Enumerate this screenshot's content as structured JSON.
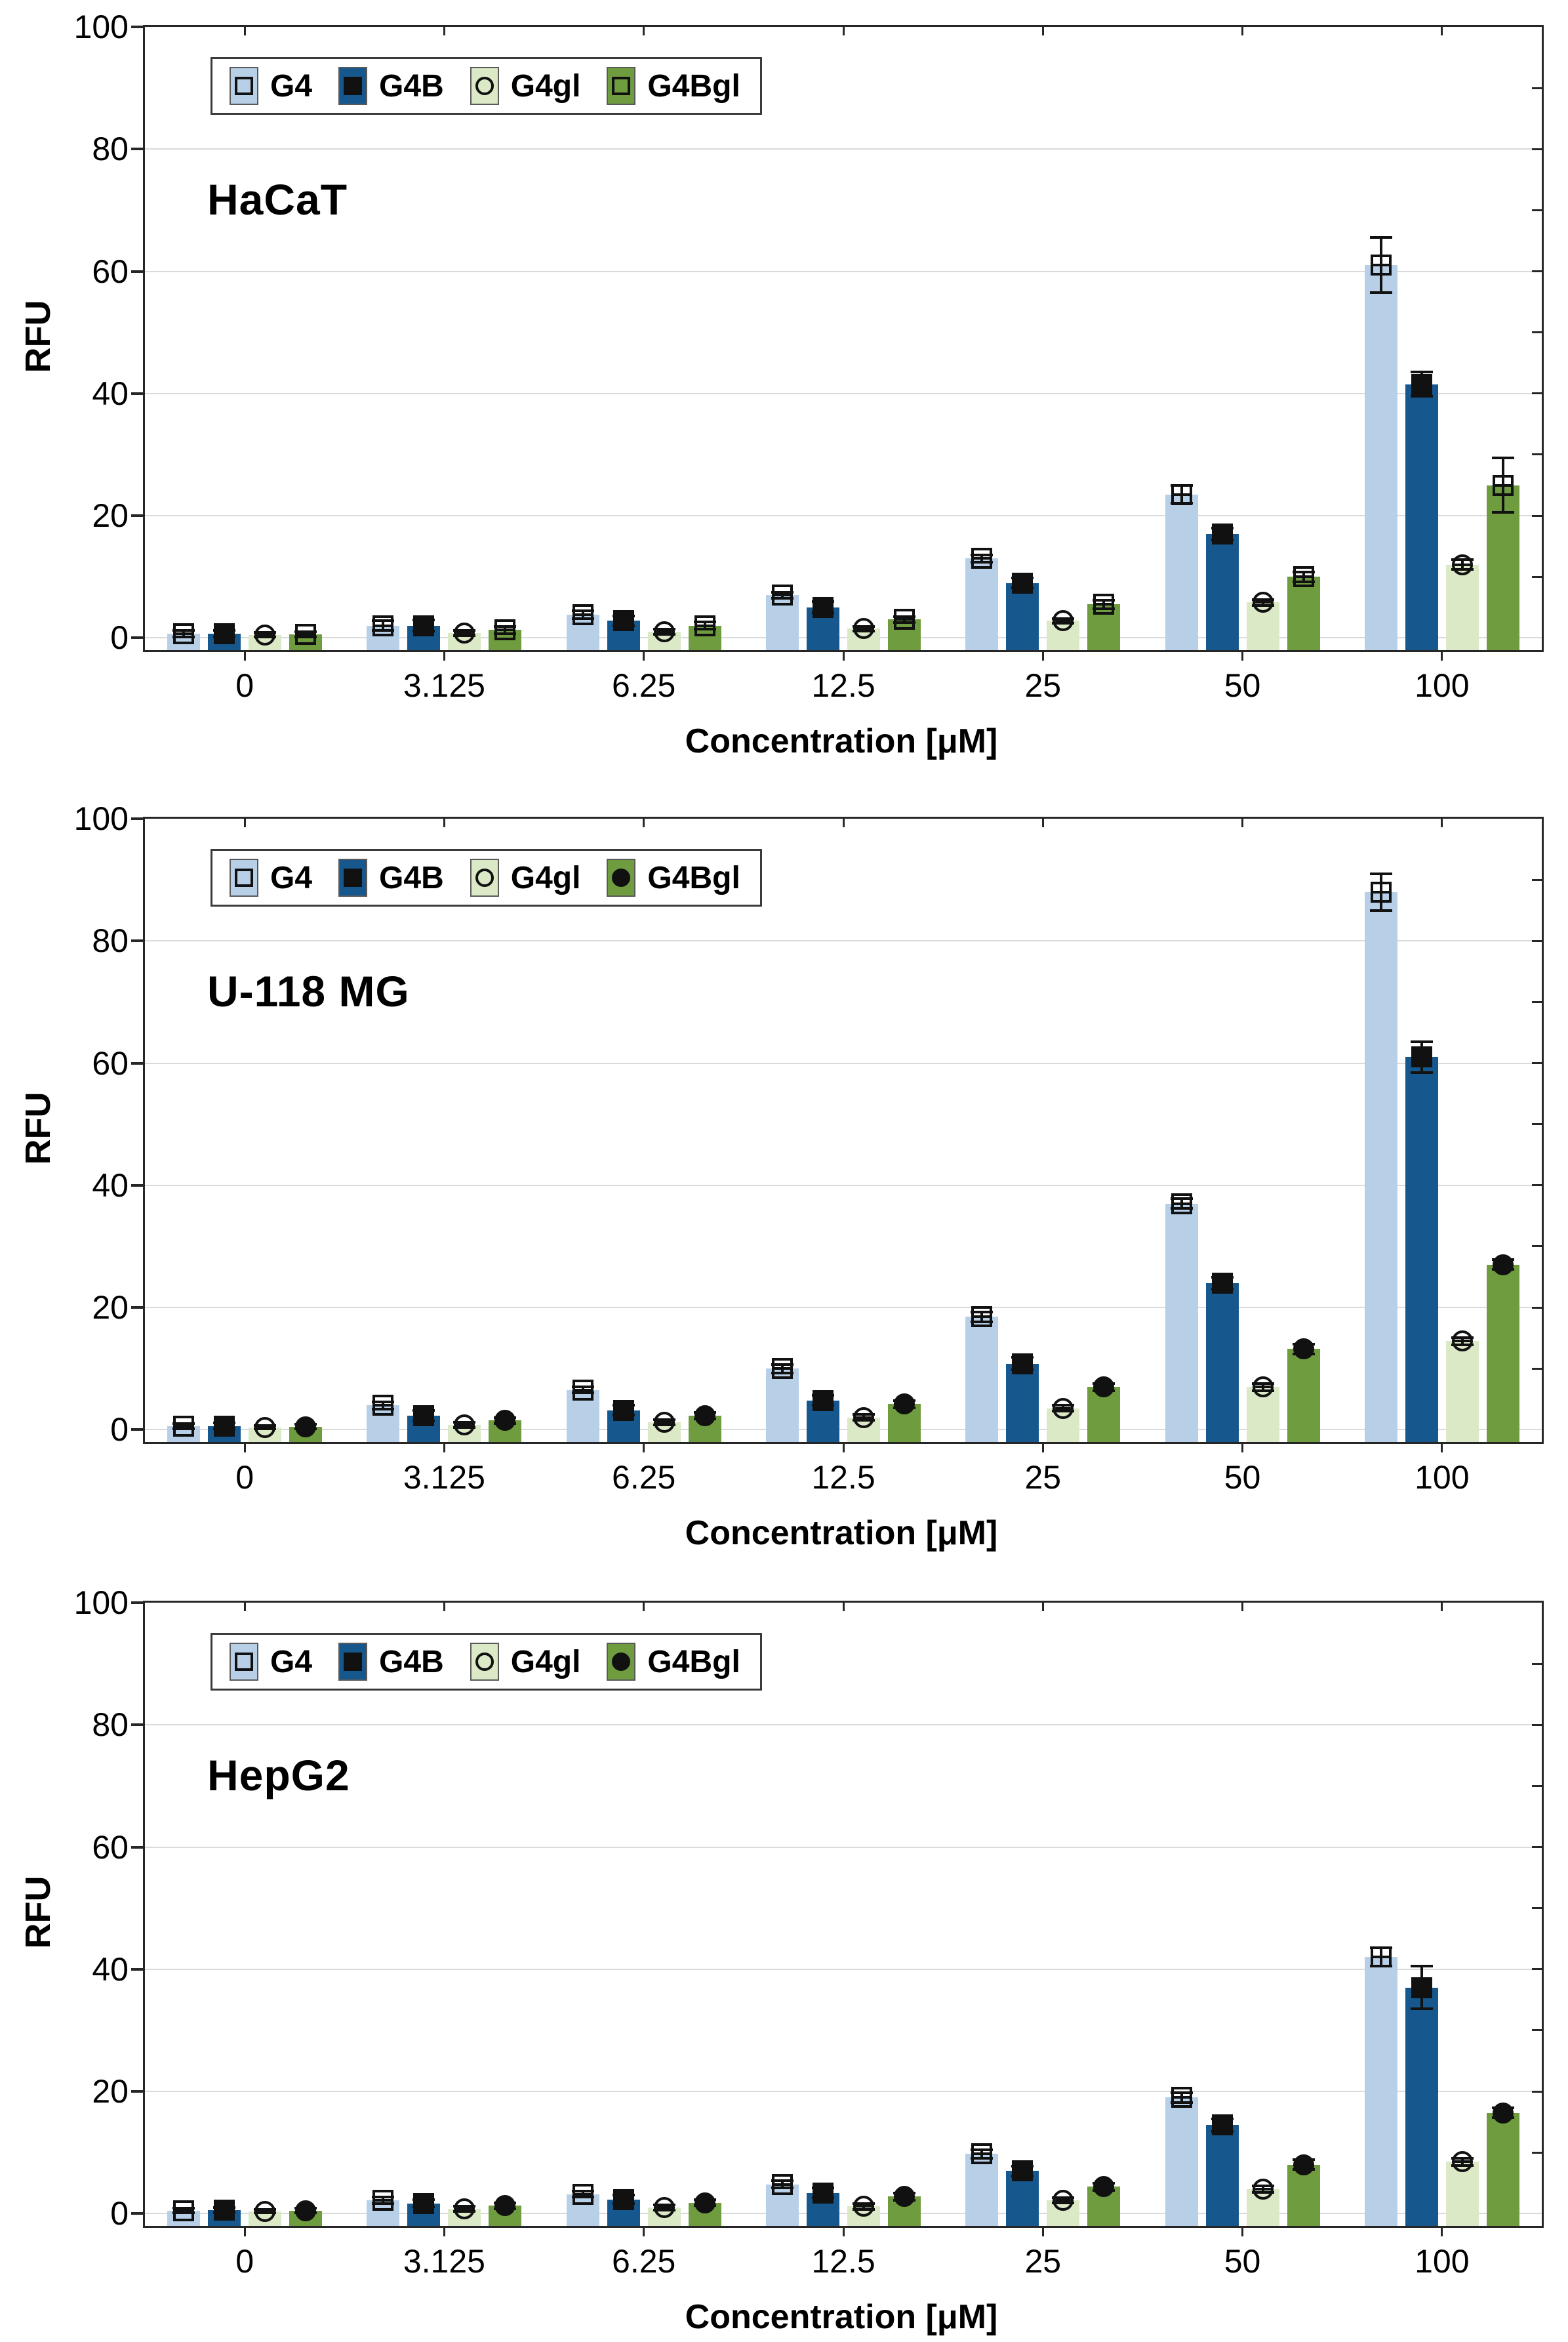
{
  "chart_data": [
    {
      "type": "bar",
      "title": "HaCaT",
      "xlabel": "Concentration [μM]",
      "ylabel": "RFU",
      "ylim": [
        -2,
        100
      ],
      "yticks": [
        0,
        20,
        40,
        60,
        80,
        100
      ],
      "grid": "horizontal",
      "legend_position": "top-left-inside",
      "categories": [
        "0",
        "3.125",
        "6.25",
        "12.5",
        "25",
        "50",
        "100"
      ],
      "series": [
        {
          "name": "G4",
          "color": "#b8cfe8",
          "marker": "open-square",
          "values": [
            0.7,
            2.0,
            3.8,
            7.0,
            13.0,
            23.5,
            61.0
          ],
          "errors": [
            0.5,
            0.8,
            0.6,
            0.5,
            0.6,
            1.5,
            4.5
          ]
        },
        {
          "name": "G4B",
          "color": "#16588e",
          "marker": "filled-square",
          "values": [
            0.7,
            2.0,
            2.8,
            5.0,
            9.0,
            17.0,
            41.5
          ],
          "errors": [
            0.5,
            0.9,
            0.8,
            0.9,
            0.8,
            1.0,
            2.0
          ]
        },
        {
          "name": "G4gl",
          "color": "#dce9c6",
          "marker": "open-circle",
          "values": [
            0.5,
            0.8,
            1.0,
            1.5,
            2.8,
            5.8,
            12.0
          ],
          "errors": [
            0.4,
            0.4,
            0.4,
            0.4,
            0.4,
            0.5,
            0.8
          ]
        },
        {
          "name": "G4Bgl",
          "color": "#6f9c3e",
          "marker": "open-square",
          "values": [
            0.6,
            1.3,
            2.0,
            3.0,
            5.5,
            10.0,
            25.0
          ],
          "errors": [
            0.4,
            0.6,
            0.6,
            0.5,
            0.7,
            0.8,
            4.5
          ]
        }
      ]
    },
    {
      "type": "bar",
      "title": "U-118 MG",
      "xlabel": "Concentration [μM]",
      "ylabel": "RFU",
      "ylim": [
        -2,
        100
      ],
      "yticks": [
        0,
        20,
        40,
        60,
        80,
        100
      ],
      "grid": "horizontal",
      "legend_position": "top-left-inside",
      "categories": [
        "0",
        "3.125",
        "6.25",
        "12.5",
        "25",
        "50",
        "100"
      ],
      "series": [
        {
          "name": "G4",
          "color": "#b8cfe8",
          "marker": "open-square",
          "values": [
            0.6,
            4.0,
            6.5,
            10.0,
            18.5,
            37.0,
            88.0
          ],
          "errors": [
            0.4,
            0.6,
            0.5,
            0.7,
            0.8,
            0.8,
            3.0
          ]
        },
        {
          "name": "G4B",
          "color": "#16588e",
          "marker": "filled-square",
          "values": [
            0.6,
            2.3,
            3.2,
            4.8,
            10.8,
            24.0,
            61.0
          ],
          "errors": [
            0.5,
            0.9,
            0.8,
            0.8,
            1.0,
            1.0,
            2.5
          ]
        },
        {
          "name": "G4gl",
          "color": "#dce9c6",
          "marker": "open-circle",
          "values": [
            0.4,
            0.8,
            1.2,
            2.0,
            3.5,
            7.0,
            14.5
          ],
          "errors": [
            0.3,
            0.4,
            0.4,
            0.5,
            0.5,
            0.6,
            0.6
          ]
        },
        {
          "name": "G4Bgl",
          "color": "#6f9c3e",
          "marker": "filled-circle",
          "values": [
            0.5,
            1.5,
            2.3,
            4.2,
            7.0,
            13.2,
            27.0
          ],
          "errors": [
            0.4,
            0.5,
            0.5,
            0.6,
            0.6,
            0.8,
            0.8
          ]
        }
      ]
    },
    {
      "type": "bar",
      "title": "HepG2",
      "xlabel": "Concentration [μM]",
      "ylabel": "RFU",
      "ylim": [
        -2,
        100
      ],
      "yticks": [
        0,
        20,
        40,
        60,
        80,
        100
      ],
      "grid": "horizontal",
      "legend_position": "top-left-inside",
      "categories": [
        "0",
        "3.125",
        "6.25",
        "12.5",
        "25",
        "50",
        "100"
      ],
      "series": [
        {
          "name": "G4",
          "color": "#b8cfe8",
          "marker": "open-square",
          "values": [
            0.5,
            2.2,
            3.2,
            4.8,
            9.8,
            19.0,
            42.0
          ],
          "errors": [
            0.4,
            0.5,
            0.5,
            0.6,
            0.7,
            0.8,
            1.5
          ]
        },
        {
          "name": "G4B",
          "color": "#16588e",
          "marker": "filled-square",
          "values": [
            0.6,
            1.7,
            2.3,
            3.4,
            7.0,
            14.5,
            37.0
          ],
          "errors": [
            0.4,
            0.6,
            0.7,
            0.8,
            0.8,
            1.0,
            3.5
          ]
        },
        {
          "name": "G4gl",
          "color": "#dce9c6",
          "marker": "open-circle",
          "values": [
            0.4,
            0.8,
            1.0,
            1.2,
            2.2,
            4.0,
            8.5
          ],
          "errors": [
            0.3,
            0.4,
            0.4,
            0.5,
            0.4,
            0.5,
            0.6
          ]
        },
        {
          "name": "G4Bgl",
          "color": "#6f9c3e",
          "marker": "filled-circle",
          "values": [
            0.5,
            1.3,
            1.8,
            2.8,
            4.4,
            8.0,
            16.5
          ],
          "errors": [
            0.4,
            0.5,
            0.5,
            0.6,
            0.6,
            0.8,
            0.8
          ]
        }
      ]
    }
  ]
}
